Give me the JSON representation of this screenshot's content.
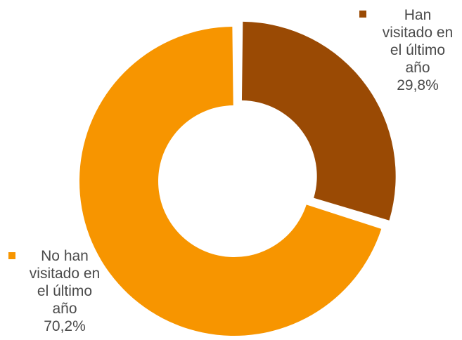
{
  "chart_data": {
    "type": "pie",
    "title": "",
    "categories": [
      "Han visitado en el último año",
      "No han visitado en el último año"
    ],
    "values": [
      29.8,
      70.2
    ],
    "unit": "%",
    "colors": [
      "#9a4a04",
      "#f79500"
    ],
    "labels": [
      {
        "lines": [
          "Han",
          "visitado en",
          "el último",
          "año"
        ],
        "value_text": "29,8%"
      },
      {
        "lines": [
          "No han",
          "visitado en",
          "el último",
          "año"
        ],
        "value_text": "70,2%"
      }
    ],
    "donut": true,
    "exploded_slice": "Han visitado en el último año",
    "legend": "inline-labels"
  }
}
